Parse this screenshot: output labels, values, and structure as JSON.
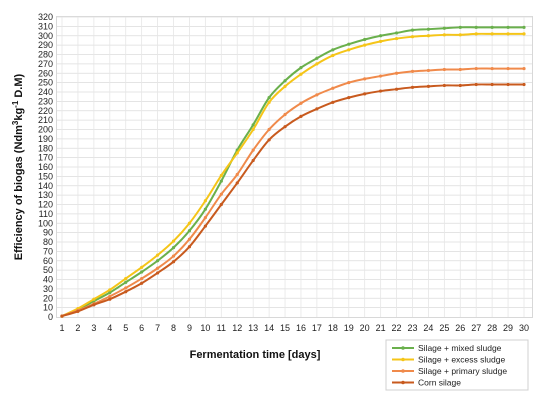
{
  "chart_data": {
    "type": "line",
    "title": "",
    "xlabel": "Fermentation time [days]",
    "ylabel": "Efficiency of biogas (Ndm³kg⁻¹ D.M)",
    "ylabel_parts": [
      "Efficiency of biogas (Ndm",
      "3",
      "kg",
      "-1",
      " D.M)"
    ],
    "xlim": [
      1,
      30
    ],
    "ylim": [
      0,
      320
    ],
    "y_step": 10,
    "grid": true,
    "legend_position": "bottom-right",
    "x": [
      1,
      2,
      3,
      4,
      5,
      6,
      7,
      8,
      9,
      10,
      11,
      12,
      13,
      14,
      15,
      16,
      17,
      18,
      19,
      20,
      21,
      22,
      23,
      24,
      25,
      26,
      27,
      28,
      29,
      30
    ],
    "series": [
      {
        "name": "Silage + mixed sludge",
        "color": "#6ab04c",
        "values": [
          1,
          8,
          17,
          26,
          37,
          48,
          60,
          74,
          92,
          115,
          145,
          178,
          205,
          234,
          252,
          266,
          276,
          285,
          291,
          296,
          300,
          303,
          306,
          307,
          308,
          309,
          309,
          309,
          309,
          309
        ]
      },
      {
        "name": "Silage + excess sludge",
        "color": "#f5c518",
        "values": [
          1,
          9,
          19,
          29,
          41,
          53,
          66,
          81,
          100,
          124,
          151,
          175,
          200,
          229,
          246,
          259,
          270,
          279,
          285,
          290,
          294,
          297,
          299,
          300,
          301,
          301,
          302,
          302,
          302,
          302
        ]
      },
      {
        "name": "Silage + primary sludge",
        "color": "#f08a4b",
        "values": [
          1,
          7,
          14,
          22,
          31,
          41,
          52,
          65,
          83,
          106,
          131,
          152,
          178,
          200,
          216,
          228,
          237,
          244,
          250,
          254,
          257,
          260,
          262,
          263,
          264,
          264,
          265,
          265,
          265,
          265
        ]
      },
      {
        "name": "Corn silage",
        "color": "#c85a1e",
        "values": [
          1,
          6,
          13,
          19,
          27,
          36,
          47,
          59,
          75,
          97,
          120,
          143,
          167,
          189,
          203,
          214,
          222,
          229,
          234,
          238,
          241,
          243,
          245,
          246,
          247,
          247,
          248,
          248,
          248,
          248
        ]
      }
    ]
  }
}
